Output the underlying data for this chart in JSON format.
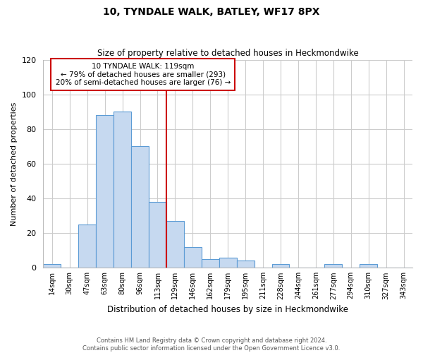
{
  "title": "10, TYNDALE WALK, BATLEY, WF17 8PX",
  "subtitle": "Size of property relative to detached houses in Heckmondwike",
  "xlabel": "Distribution of detached houses by size in Heckmondwike",
  "ylabel": "Number of detached properties",
  "footer_line1": "Contains HM Land Registry data © Crown copyright and database right 2024.",
  "footer_line2": "Contains public sector information licensed under the Open Government Licence v3.0.",
  "bar_labels": [
    "14sqm",
    "30sqm",
    "47sqm",
    "63sqm",
    "80sqm",
    "96sqm",
    "113sqm",
    "129sqm",
    "146sqm",
    "162sqm",
    "179sqm",
    "195sqm",
    "211sqm",
    "228sqm",
    "244sqm",
    "261sqm",
    "277sqm",
    "294sqm",
    "310sqm",
    "327sqm",
    "343sqm"
  ],
  "bar_values": [
    2,
    0,
    25,
    88,
    90,
    70,
    38,
    27,
    12,
    5,
    6,
    4,
    0,
    2,
    0,
    0,
    2,
    0,
    2,
    0,
    0
  ],
  "bar_color": "#c6d9f0",
  "bar_edge_color": "#5b9bd5",
  "vline_color": "#cc0000",
  "annotation_title": "10 TYNDALE WALK: 119sqm",
  "annotation_line1": "← 79% of detached houses are smaller (293)",
  "annotation_line2": "20% of semi-detached houses are larger (76) →",
  "annotation_box_color": "#ffffff",
  "annotation_box_edge_color": "#cc0000",
  "ylim": [
    0,
    120
  ],
  "yticks": [
    0,
    20,
    40,
    60,
    80,
    100,
    120
  ],
  "background_color": "#ffffff",
  "grid_color": "#cccccc"
}
